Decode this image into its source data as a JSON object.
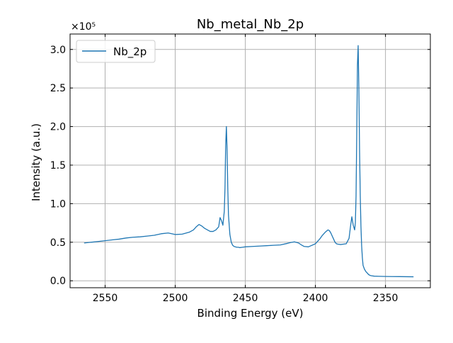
{
  "chart_data": {
    "type": "line",
    "title": "Nb_metal_Nb_2p",
    "xlabel": "Binding Energy (eV)",
    "ylabel": "Intensity (a.u.)",
    "y_multiplier_label": "×10⁵",
    "y_scale_factor": 100000,
    "xlim": [
      2575,
      2318
    ],
    "x_reversed": true,
    "ylim": [
      -9000,
      320000
    ],
    "x_ticks": [
      2550,
      2500,
      2450,
      2400,
      2350
    ],
    "x_tick_labels": [
      "2550",
      "2500",
      "2450",
      "2400",
      "2350"
    ],
    "y_ticks": [
      0,
      50000,
      100000,
      150000,
      200000,
      250000,
      300000
    ],
    "y_tick_labels": [
      "0.0",
      "0.5",
      "1.0",
      "1.5",
      "2.0",
      "2.5",
      "3.0"
    ],
    "grid": true,
    "legend_position": "top-left",
    "series": [
      {
        "name": "Nb_2p",
        "color": "#1f77b4",
        "x": [
          2565,
          2560,
          2555,
          2550,
          2545,
          2540,
          2535,
          2530,
          2525,
          2520,
          2515,
          2510,
          2505,
          2500,
          2495,
          2490,
          2487,
          2485,
          2483,
          2481,
          2479,
          2477,
          2475,
          2473,
          2471,
          2469,
          2468,
          2467,
          2466,
          2465,
          2464.5,
          2464,
          2463.5,
          2463,
          2462.5,
          2462,
          2461,
          2460,
          2459,
          2458,
          2457,
          2456,
          2455,
          2454,
          2452,
          2450,
          2445,
          2440,
          2435,
          2430,
          2425,
          2420,
          2418,
          2415,
          2412,
          2410,
          2408,
          2405,
          2400,
          2397,
          2395,
          2393,
          2391,
          2390,
          2389,
          2388,
          2387,
          2386,
          2385,
          2384,
          2382,
          2380,
          2378,
          2376,
          2375,
          2374,
          2373,
          2372,
          2371.5,
          2371,
          2370.5,
          2370,
          2369.5,
          2369,
          2368.5,
          2368,
          2367.5,
          2367,
          2366.5,
          2366,
          2365,
          2364,
          2363,
          2362,
          2361,
          2360,
          2358,
          2355,
          2350,
          2345,
          2340,
          2335,
          2330
        ],
        "y": [
          49000,
          50000,
          51000,
          52000,
          53000,
          54000,
          55500,
          56500,
          57000,
          58000,
          59000,
          61000,
          62000,
          60000,
          60500,
          63000,
          66000,
          70000,
          73000,
          71000,
          68000,
          66000,
          64000,
          64000,
          66000,
          70000,
          82000,
          78000,
          72000,
          90000,
          120000,
          175000,
          200000,
          170000,
          120000,
          85000,
          60000,
          50000,
          46000,
          44500,
          44000,
          43500,
          43500,
          43000,
          43500,
          44000,
          44500,
          45000,
          45500,
          46000,
          46500,
          48500,
          49500,
          50500,
          49000,
          46500,
          44500,
          44000,
          48000,
          54000,
          59000,
          63000,
          66000,
          65000,
          62000,
          58000,
          54000,
          50000,
          48000,
          47500,
          47000,
          47500,
          48000,
          55000,
          70000,
          83000,
          72000,
          66000,
          75000,
          110000,
          190000,
          280000,
          305000,
          250000,
          170000,
          110000,
          70000,
          45000,
          30000,
          20000,
          15000,
          12000,
          10000,
          8000,
          7000,
          6500,
          6000,
          5800,
          5600,
          5500,
          5400,
          5300,
          5200
        ]
      }
    ]
  }
}
